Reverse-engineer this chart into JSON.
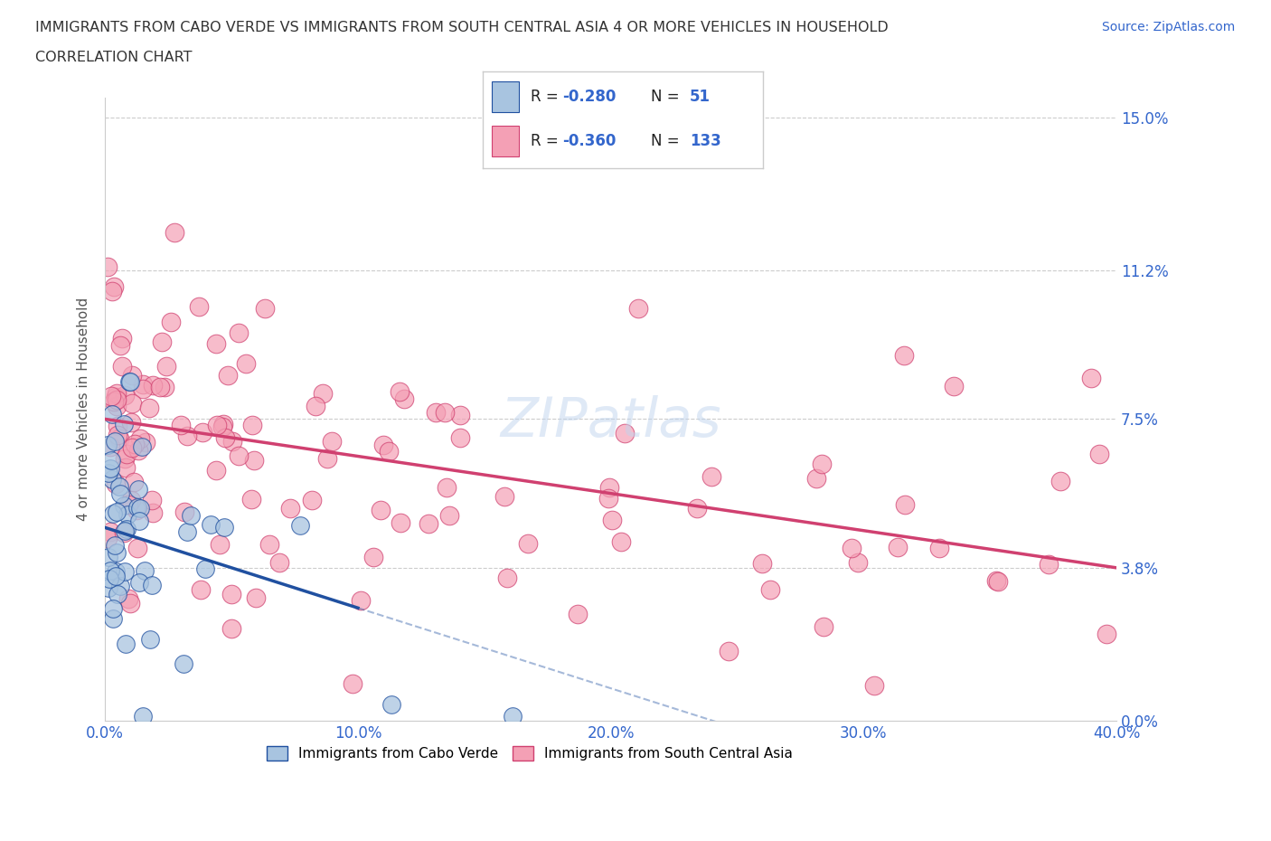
{
  "title_line1": "IMMIGRANTS FROM CABO VERDE VS IMMIGRANTS FROM SOUTH CENTRAL ASIA 4 OR MORE VEHICLES IN HOUSEHOLD",
  "title_line2": "CORRELATION CHART",
  "source": "Source: ZipAtlas.com",
  "xlim": [
    0.0,
    0.4
  ],
  "ylim": [
    0.0,
    0.155
  ],
  "xtick_vals": [
    0.0,
    0.1,
    0.2,
    0.3,
    0.4
  ],
  "xtick_labels": [
    "0.0%",
    "10.0%",
    "20.0%",
    "30.0%",
    "40.0%"
  ],
  "ytick_vals": [
    0.0,
    0.038,
    0.075,
    0.112,
    0.15
  ],
  "ytick_labels": [
    "0.0%",
    "3.8%",
    "7.5%",
    "11.2%",
    "15.0%"
  ],
  "cabo_verde_color": "#a8c4e0",
  "south_asia_color": "#f4a0b5",
  "cabo_verde_line_color": "#2050a0",
  "south_asia_line_color": "#d04070",
  "legend_text_color": "#3366cc",
  "watermark": "ZIPatlas",
  "cv_line_x0": 0.0,
  "cv_line_y0": 0.048,
  "cv_line_x1": 0.2,
  "cv_line_y1": 0.008,
  "sa_line_x0": 0.0,
  "sa_line_y0": 0.075,
  "sa_line_x1": 0.4,
  "sa_line_y1": 0.038
}
